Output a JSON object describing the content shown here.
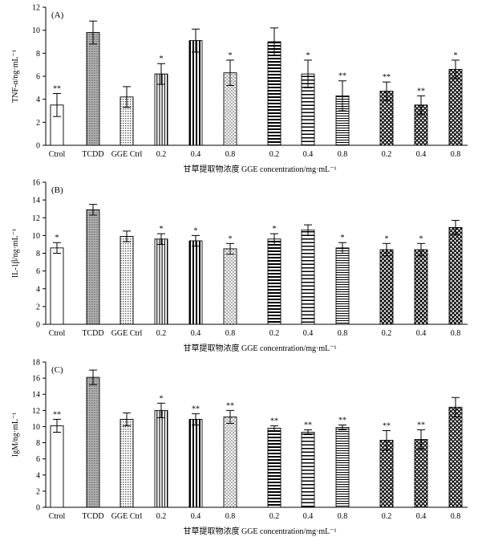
{
  "chart_data": [
    {
      "type": "bar",
      "panel_label": "(A)",
      "ylabel": "TNF-α/ng·mL⁻¹",
      "xlabel": "甘草提取物浓度 GGE concentration/mg·mL⁻¹",
      "ylim": [
        0,
        12
      ],
      "yticks": [
        0,
        2,
        4,
        6,
        8,
        10,
        12
      ],
      "categories": [
        "Ctrol",
        "TCDD",
        "GGE Ctrl",
        "0.2",
        "0.4",
        "0.8",
        "0.2",
        "0.4",
        "0.8",
        "0.2",
        "0.4",
        "0.8"
      ],
      "patterns": [
        "white",
        "dots-dense",
        "grid-fine",
        "vlines-fine",
        "vlines-bold",
        "stipple",
        "hlines-bold",
        "hlines-mid",
        "hlines-fine",
        "cross",
        "cross",
        "cross"
      ],
      "values": [
        3.5,
        9.8,
        4.2,
        6.2,
        9.1,
        6.3,
        9.0,
        6.2,
        4.3,
        4.7,
        3.5,
        6.6
      ],
      "errors": [
        1.0,
        1.0,
        0.9,
        0.9,
        1.0,
        1.1,
        1.2,
        1.2,
        1.3,
        0.8,
        0.8,
        0.8
      ],
      "significance": [
        "**",
        "",
        "",
        "*",
        "",
        "*",
        "",
        "*",
        "**",
        "**",
        "**",
        "*"
      ]
    },
    {
      "type": "bar",
      "panel_label": "(B)",
      "ylabel": "IL-1β/ng·mL⁻¹",
      "xlabel": "甘草提取物浓度 GGE concentration/mg·mL⁻¹",
      "ylim": [
        0,
        16
      ],
      "yticks": [
        0,
        2,
        4,
        6,
        8,
        10,
        12,
        14,
        16
      ],
      "categories": [
        "Ctrol",
        "TCDD",
        "GGE Ctrl",
        "0.2",
        "0.4",
        "0.8",
        "0.2",
        "0.4",
        "0.8",
        "0.2",
        "0.4",
        "0.8"
      ],
      "patterns": [
        "white",
        "dots-dense",
        "grid-fine",
        "vlines-fine",
        "vlines-bold",
        "stipple",
        "hlines-bold",
        "hlines-mid",
        "hlines-fine",
        "cross",
        "cross",
        "cross"
      ],
      "values": [
        8.6,
        12.9,
        9.9,
        9.6,
        9.4,
        8.5,
        9.6,
        10.6,
        8.6,
        8.4,
        8.4,
        10.9
      ],
      "errors": [
        0.6,
        0.6,
        0.6,
        0.6,
        0.6,
        0.6,
        0.6,
        0.6,
        0.6,
        0.7,
        0.7,
        0.8
      ],
      "significance": [
        "*",
        "",
        "",
        "*",
        "*",
        "*",
        "*",
        "",
        "*",
        "*",
        "*",
        ""
      ]
    },
    {
      "type": "bar",
      "panel_label": "(C)",
      "ylabel": "IgM/ng·mL⁻¹",
      "xlabel": "甘草提取物浓度 GGE concentration/mg·mL⁻¹",
      "ylim": [
        0,
        18
      ],
      "yticks": [
        0,
        2,
        4,
        6,
        8,
        10,
        12,
        14,
        16,
        18
      ],
      "categories": [
        "Ctrol",
        "TCDD",
        "GGE Ctrl",
        "0.2",
        "0.4",
        "0.8",
        "0.2",
        "0.4",
        "0.8",
        "0.2",
        "0.4",
        "0.8"
      ],
      "patterns": [
        "white",
        "dots-dense",
        "grid-fine",
        "vlines-fine",
        "vlines-bold",
        "stipple",
        "hlines-bold",
        "hlines-mid",
        "hlines-fine",
        "cross",
        "cross",
        "cross"
      ],
      "values": [
        10.1,
        16.1,
        10.9,
        12.0,
        10.9,
        11.2,
        9.8,
        9.3,
        9.9,
        8.3,
        8.4,
        12.4
      ],
      "errors": [
        0.8,
        0.9,
        0.8,
        0.9,
        0.7,
        0.8,
        0.3,
        0.3,
        0.3,
        1.2,
        1.2,
        1.2
      ],
      "significance": [
        "**",
        "",
        "",
        "*",
        "**",
        "**",
        "**",
        "**",
        "**",
        "**",
        "**",
        ""
      ]
    }
  ]
}
